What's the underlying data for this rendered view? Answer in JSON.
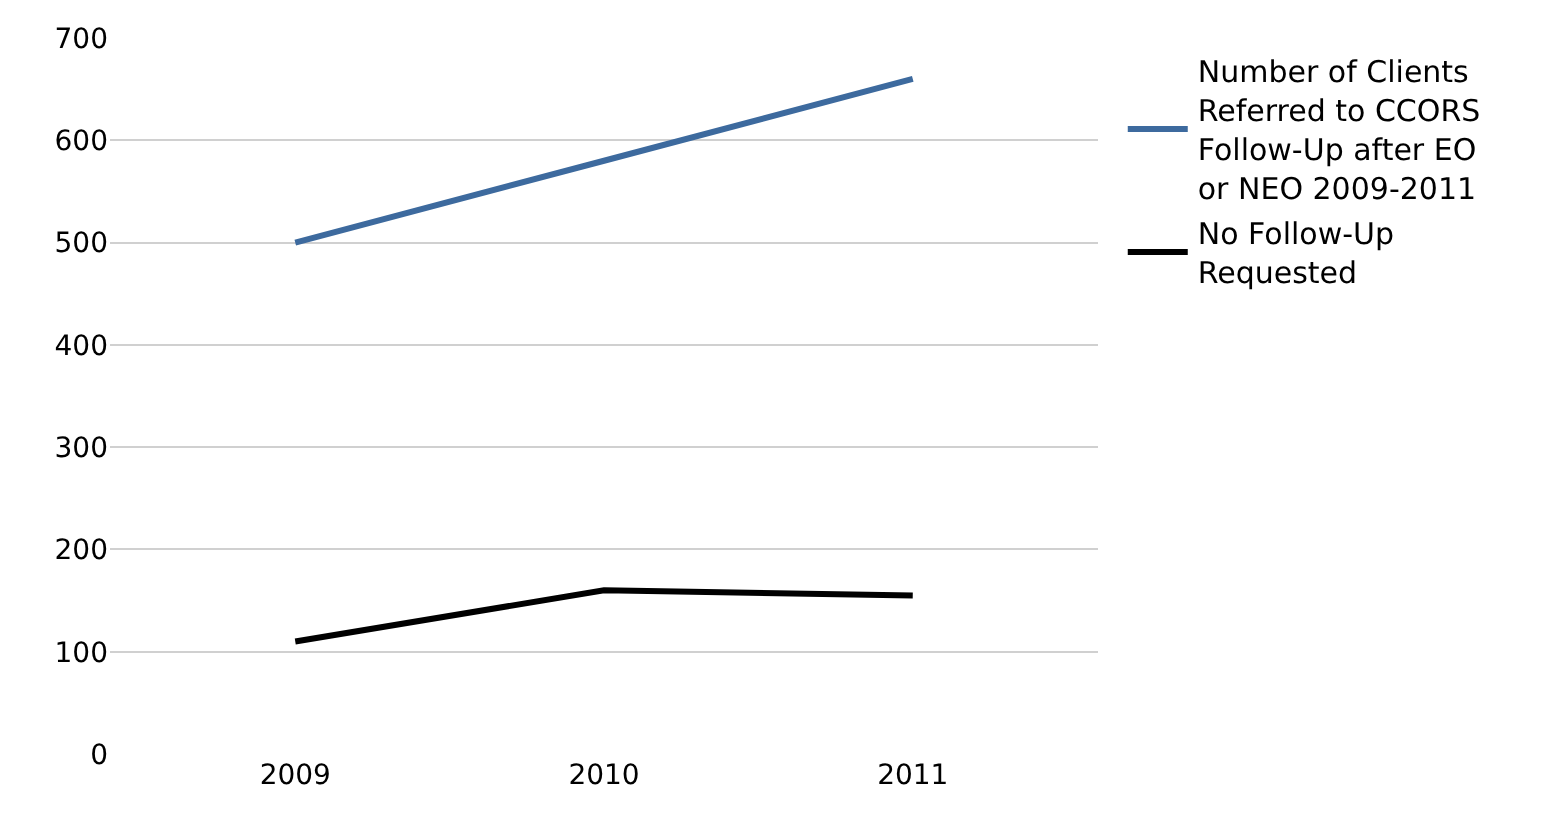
{
  "chart_data": {
    "type": "line",
    "categories": [
      "2009",
      "2010",
      "2011"
    ],
    "series": [
      {
        "name": "Number of Clients Referred to CCORS Follow-Up after EO or NEO 2009-2011",
        "color": "#3d6a9e",
        "values": [
          500,
          580,
          660
        ]
      },
      {
        "name": "No Follow-Up Requested",
        "color": "#000000",
        "values": [
          110,
          160,
          155
        ]
      }
    ],
    "ylim": [
      0,
      700
    ],
    "yticks": [
      0,
      100,
      200,
      300,
      400,
      500,
      600,
      700
    ],
    "grid": "y",
    "legend": "right",
    "marker": "none",
    "line_style": "solid"
  }
}
